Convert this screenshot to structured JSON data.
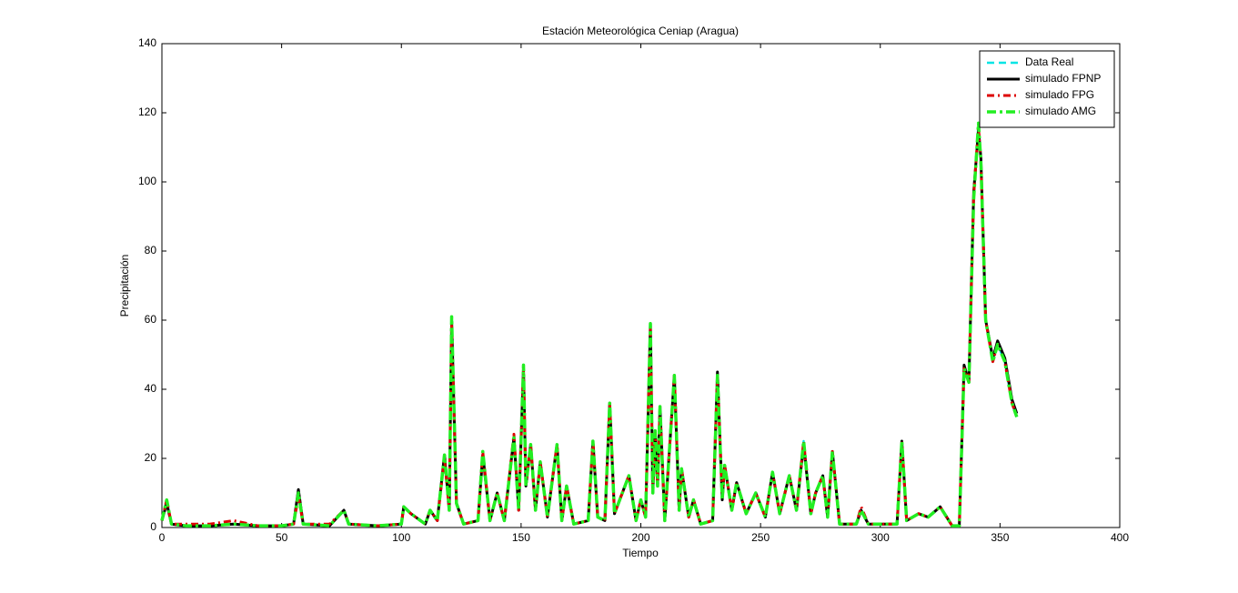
{
  "chart_data": {
    "type": "line",
    "title": "Estación Meteorológica Ceniap (Aragua)",
    "xlabel": "Tiempo",
    "ylabel": "Precipitación",
    "xlim": [
      0,
      400
    ],
    "ylim": [
      0,
      140
    ],
    "xticks": [
      0,
      50,
      100,
      150,
      200,
      250,
      300,
      350,
      400
    ],
    "yticks": [
      0,
      20,
      40,
      60,
      80,
      100,
      120,
      140
    ],
    "legend": "upper right",
    "x": [
      0,
      2,
      4,
      10,
      20,
      30,
      40,
      50,
      55,
      57,
      59,
      70,
      76,
      78,
      90,
      100,
      101,
      104,
      110,
      112,
      115,
      118,
      120,
      121,
      123,
      126,
      132,
      134,
      137,
      140,
      143,
      147,
      149,
      151,
      152,
      154,
      156,
      158,
      161,
      165,
      167,
      169,
      172,
      178,
      180,
      182,
      185,
      187,
      189,
      195,
      198,
      200,
      202,
      204,
      205,
      206,
      207,
      208,
      210,
      214,
      216,
      217,
      220,
      222,
      225,
      230,
      232,
      234,
      235,
      238,
      240,
      244,
      248,
      252,
      255,
      258,
      262,
      265,
      268,
      271,
      273,
      276,
      278,
      280,
      283,
      290,
      292,
      295,
      300,
      307,
      309,
      311,
      316,
      320,
      325,
      330,
      333,
      335,
      337,
      339,
      341,
      342,
      344,
      347,
      349,
      352,
      355,
      357
    ],
    "series": [
      {
        "name": "Data Real",
        "color": "#00e5e5",
        "dash": "8,5",
        "width": 2.5,
        "values": [
          2,
          8,
          1,
          0.5,
          0.5,
          1,
          0.5,
          0.5,
          1,
          10,
          1,
          0.5,
          5,
          1,
          0.5,
          1,
          6,
          4,
          1,
          5,
          2,
          21,
          5,
          61,
          7,
          1,
          2,
          22,
          2,
          10,
          2,
          26,
          5,
          47,
          12,
          24,
          5,
          19,
          3,
          24,
          2,
          12,
          1,
          2,
          25,
          3,
          2,
          36,
          4,
          15,
          2,
          8,
          3,
          59,
          10,
          28,
          12,
          35,
          2,
          44,
          5,
          17,
          3,
          8,
          1,
          2,
          44,
          8,
          18,
          5,
          13,
          4,
          10,
          3,
          16,
          4,
          15,
          5,
          25,
          4,
          10,
          15,
          3,
          22,
          1,
          1,
          5,
          1,
          1,
          1,
          25,
          2,
          4,
          3,
          6,
          0.5,
          0.5,
          46,
          42,
          95,
          117,
          106,
          60,
          48,
          53,
          48,
          36,
          32
        ]
      },
      {
        "name": "simulado FPNP",
        "color": "#000000",
        "dash": "none",
        "width": 3,
        "values": [
          2,
          7,
          1,
          0.5,
          0.5,
          1,
          0.5,
          0.5,
          1,
          11,
          1,
          0.5,
          5,
          1,
          0.5,
          1,
          6,
          4,
          1,
          5,
          2,
          21,
          5,
          60,
          7,
          1,
          2,
          21,
          2,
          10,
          2,
          26,
          5,
          46,
          12,
          24,
          5,
          19,
          3,
          24,
          2,
          12,
          1,
          2,
          25,
          3,
          2,
          36,
          4,
          15,
          2,
          8,
          3,
          59,
          10,
          28,
          12,
          35,
          2,
          44,
          5,
          17,
          3,
          8,
          1,
          2,
          45,
          8,
          18,
          5,
          13,
          4,
          10,
          3,
          16,
          4,
          15,
          5,
          24,
          4,
          10,
          15,
          3,
          22,
          1,
          1,
          5,
          1,
          1,
          1,
          25,
          2,
          4,
          3,
          6,
          0.5,
          0.5,
          47,
          42,
          97,
          115,
          107,
          60,
          49,
          54,
          49,
          37,
          33
        ]
      },
      {
        "name": "simulado FPG",
        "color": "#dd0000",
        "dash": "8,4,2,4",
        "width": 3,
        "values": [
          2,
          8,
          1,
          1,
          1,
          2,
          0.5,
          0.5,
          1,
          9,
          1,
          1,
          5,
          1,
          0.5,
          1,
          6,
          4,
          1,
          5,
          2,
          20,
          5,
          59,
          7,
          1,
          2,
          22,
          2,
          10,
          2,
          27,
          5,
          46,
          12,
          24,
          5,
          19,
          3,
          24,
          2,
          12,
          1,
          2,
          25,
          3,
          2,
          36,
          4,
          15,
          2,
          8,
          3,
          58,
          10,
          28,
          12,
          35,
          2,
          44,
          5,
          17,
          3,
          8,
          1,
          2,
          44,
          8,
          18,
          5,
          13,
          4,
          10,
          3,
          16,
          4,
          15,
          5,
          25,
          4,
          10,
          15,
          3,
          22,
          1,
          1,
          6,
          1,
          1,
          1,
          25,
          2,
          4,
          3,
          6,
          0.5,
          0.5,
          46,
          42,
          96,
          116,
          106,
          60,
          48,
          53,
          48,
          36,
          32
        ]
      },
      {
        "name": "simulado AMG",
        "color": "#22ee22",
        "dash": "10,4,3,4",
        "width": 3.5,
        "values": [
          2,
          8,
          1,
          0.5,
          0.5,
          1,
          0.5,
          0.5,
          1,
          10,
          1,
          0.5,
          5,
          1,
          0.5,
          1,
          6,
          4,
          1,
          5,
          2,
          21,
          5,
          61,
          7,
          1,
          2,
          22,
          2,
          10,
          2,
          26,
          5,
          47,
          12,
          24,
          5,
          19,
          3,
          24,
          2,
          12,
          1,
          2,
          25,
          3,
          2,
          36,
          4,
          15,
          2,
          8,
          3,
          59,
          10,
          28,
          12,
          35,
          2,
          44,
          5,
          17,
          3,
          8,
          1,
          2,
          44,
          8,
          18,
          5,
          13,
          4,
          10,
          3,
          16,
          4,
          15,
          5,
          25,
          4,
          10,
          15,
          3,
          22,
          1,
          1,
          5,
          1,
          1,
          1,
          25,
          2,
          4,
          3,
          6,
          0.5,
          0.5,
          46,
          42,
          95,
          117,
          106,
          60,
          48,
          53,
          48,
          36,
          32
        ]
      }
    ]
  }
}
